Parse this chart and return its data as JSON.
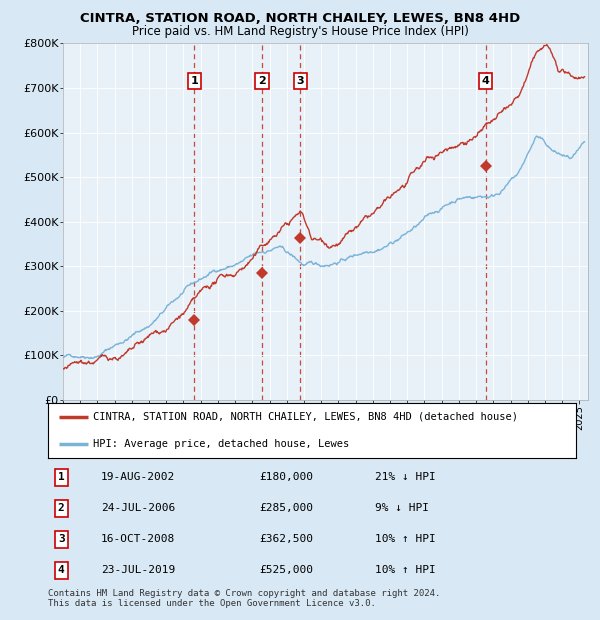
{
  "title": "CINTRA, STATION ROAD, NORTH CHAILEY, LEWES, BN8 4HD",
  "subtitle": "Price paid vs. HM Land Registry's House Price Index (HPI)",
  "xlim": [
    1995.0,
    2025.5
  ],
  "ylim": [
    0,
    800000
  ],
  "yticks": [
    0,
    100000,
    200000,
    300000,
    400000,
    500000,
    600000,
    700000,
    800000
  ],
  "ytick_labels": [
    "£0",
    "£100K",
    "£200K",
    "£300K",
    "£400K",
    "£500K",
    "£600K",
    "£700K",
    "£800K"
  ],
  "hpi_color": "#7ab3d8",
  "price_color": "#c0392b",
  "vline_color": "#c0392b",
  "marker_color": "#c0392b",
  "sale_points": [
    {
      "year": 2002.633,
      "price": 180000,
      "label": "1"
    },
    {
      "year": 2006.558,
      "price": 285000,
      "label": "2"
    },
    {
      "year": 2008.792,
      "price": 362500,
      "label": "3"
    },
    {
      "year": 2019.558,
      "price": 525000,
      "label": "4"
    }
  ],
  "legend_entries": [
    {
      "label": "CINTRA, STATION ROAD, NORTH CHAILEY, LEWES, BN8 4HD (detached house)",
      "color": "#c0392b"
    },
    {
      "label": "HPI: Average price, detached house, Lewes",
      "color": "#7ab3d8"
    }
  ],
  "table_rows": [
    {
      "num": "1",
      "date": "19-AUG-2002",
      "price": "£180,000",
      "hpi": "21% ↓ HPI"
    },
    {
      "num": "2",
      "date": "24-JUL-2006",
      "price": "£285,000",
      "hpi": "9% ↓ HPI"
    },
    {
      "num": "3",
      "date": "16-OCT-2008",
      "price": "£362,500",
      "hpi": "10% ↑ HPI"
    },
    {
      "num": "4",
      "date": "23-JUL-2019",
      "price": "£525,000",
      "hpi": "10% ↑ HPI"
    }
  ],
  "footnote": "Contains HM Land Registry data © Crown copyright and database right 2024.\nThis data is licensed under the Open Government Licence v3.0.",
  "bg_color": "#d8e8f4",
  "plot_bg": "#e8f0f8"
}
